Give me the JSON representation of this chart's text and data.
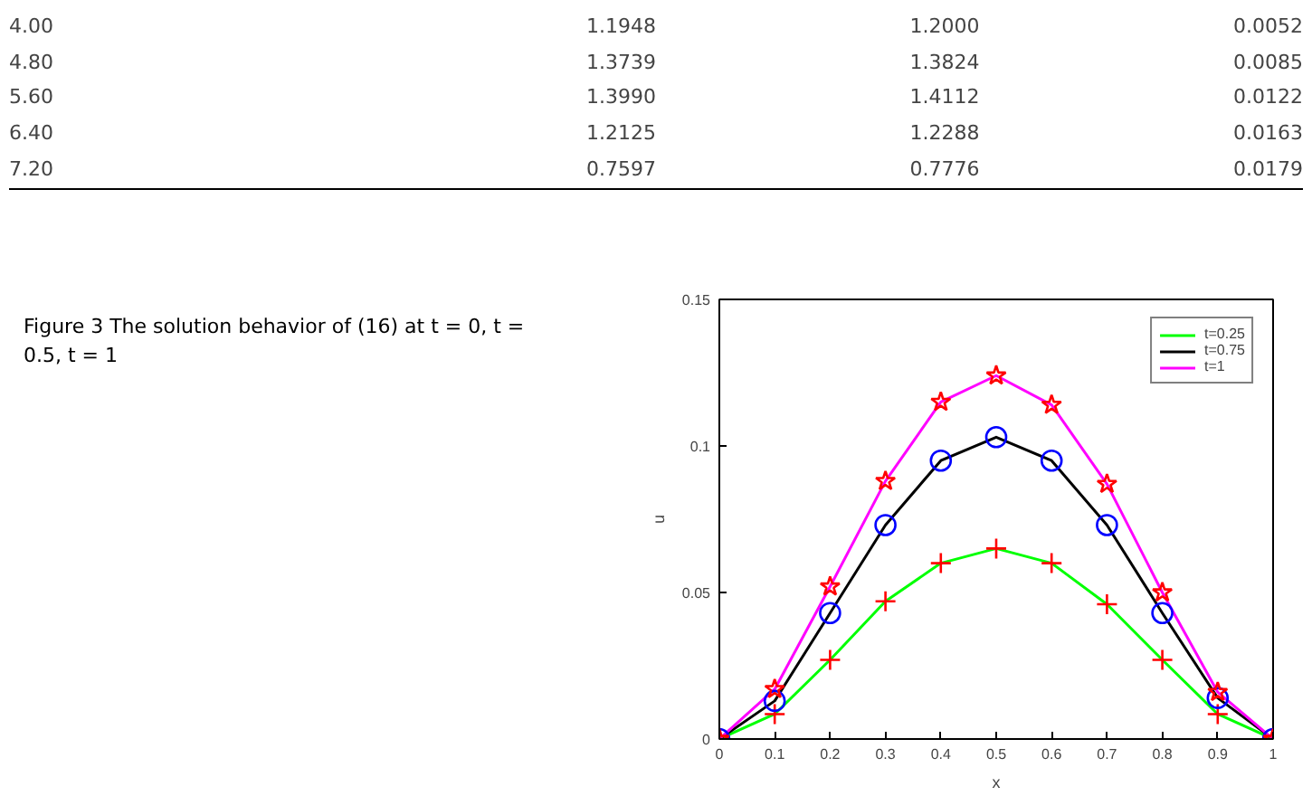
{
  "chart_data": {
    "type": "line",
    "title": "Figure 3 The solution behavior of (16) at t = 0, t = 0.5, t = 1",
    "annotations": [
      "4.00 1.1948 1.2000 0.0052",
      "4.80 1.3739 1.3824 0.0085",
      "5.60 1.3990 1.4112 0.0122",
      "6.40 1.2125 1.2288 0.0163",
      "7.20 0.7597 0.7776 0.0179"
    ],
    "xlabel": "x",
    "ylabel": "u",
    "x": [
      0,
      0.1,
      0.2,
      0.3,
      0.4,
      0.5,
      0.6,
      0.7,
      0.8,
      0.9,
      1
    ],
    "xlim": [
      0,
      1
    ],
    "xticks": [
      0,
      0.1,
      0.2,
      0.3,
      0.4,
      0.5,
      0.6,
      0.7,
      0.8,
      0.9,
      1
    ],
    "ylim": [
      0,
      0.15
    ],
    "yticks": [
      0,
      0.05,
      0.1,
      0.15
    ],
    "grid": false,
    "legend": "top right",
    "line_style": "solid",
    "series": [
      {
        "name": "t=0.25",
        "marker": "none",
        "color": "#00ff00",
        "values": [
          0,
          0.0085,
          0.027,
          0.047,
          0.06,
          0.065,
          0.06,
          0.046,
          0.027,
          0.0085,
          0
        ]
      },
      {
        "name": "t=0.75",
        "marker": "none",
        "color": "#000000",
        "values": [
          0,
          0.013,
          0.043,
          0.073,
          0.095,
          0.103,
          0.095,
          0.073,
          0.043,
          0.014,
          0
        ]
      },
      {
        "name": "t=1",
        "marker": "none",
        "color": "#ff00ff",
        "values": [
          0,
          0.017,
          0.052,
          0.088,
          0.115,
          0.124,
          0.114,
          0.087,
          0.05,
          0.016,
          0
        ]
      },
      {
        "type": "scatter",
        "marker": "cross",
        "color": "#ff0000",
        "values": [
          0,
          0.0085,
          0.027,
          0.047,
          0.06,
          0.065,
          0.06,
          0.046,
          0.027,
          0.0085,
          0
        ]
      },
      {
        "type": "scatter",
        "marker": "circle",
        "color": "#0000ff",
        "values": [
          0,
          0.013,
          0.043,
          0.073,
          0.095,
          0.103,
          0.095,
          0.073,
          0.043,
          0.014,
          0
        ]
      },
      {
        "type": "scatter",
        "marker": "star",
        "color": "#ff0000",
        "values": [
          0,
          0.017,
          0.052,
          0.088,
          0.115,
          0.124,
          0.114,
          0.087,
          0.05,
          0.016,
          0
        ]
      }
    ]
  }
}
